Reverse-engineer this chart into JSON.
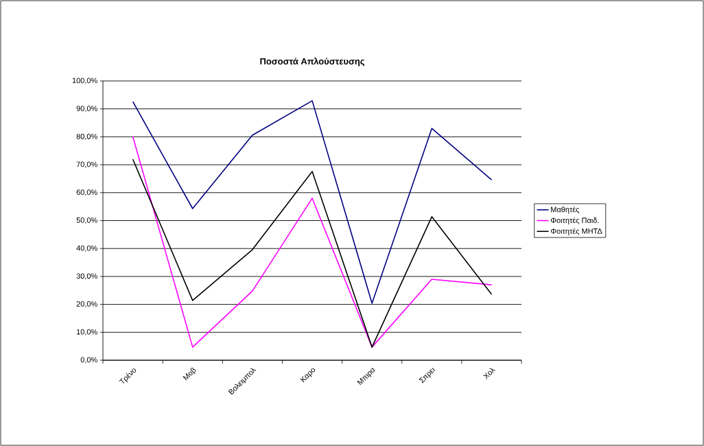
{
  "chart_data": {
    "type": "line",
    "title": "Ποσοστά Απλούστευσης",
    "categories": [
      "Τρένο",
      "Μοβ",
      "Βολειμπολ",
      "Καρο",
      "Μπιρα",
      "Σπρει",
      "Χολ"
    ],
    "series": [
      {
        "name": "Μαθητές",
        "color": "#000080",
        "values": [
          92.6,
          54.3,
          80.6,
          92.9,
          20.4,
          83.0,
          64.6
        ]
      },
      {
        "name": "Φοιτητές Παιδ.",
        "color": "#ff00ff",
        "values": [
          80.1,
          4.7,
          24.8,
          58.0,
          4.7,
          29.0,
          27.0
        ]
      },
      {
        "name": "Φοιτητές ΜΗΤΔ",
        "color": "#000000",
        "values": [
          72.0,
          21.4,
          39.6,
          67.6,
          4.7,
          51.4,
          23.6
        ]
      }
    ],
    "ylim": [
      0,
      100
    ],
    "yticks": [
      {
        "value": 0,
        "label": "0,0%"
      },
      {
        "value": 10,
        "label": "10,0%"
      },
      {
        "value": 20,
        "label": "20,0%"
      },
      {
        "value": 30,
        "label": "30,0%"
      },
      {
        "value": 40,
        "label": "40,0%"
      },
      {
        "value": 50,
        "label": "50,0%"
      },
      {
        "value": 60,
        "label": "60,0%"
      },
      {
        "value": 70,
        "label": "70,0%"
      },
      {
        "value": 80,
        "label": "80,0%"
      },
      {
        "value": 90,
        "label": "90,0%"
      },
      {
        "value": 100,
        "label": "100,0%"
      }
    ],
    "grid": "y",
    "legend": "right",
    "marker": "none",
    "line_style": "solid"
  }
}
